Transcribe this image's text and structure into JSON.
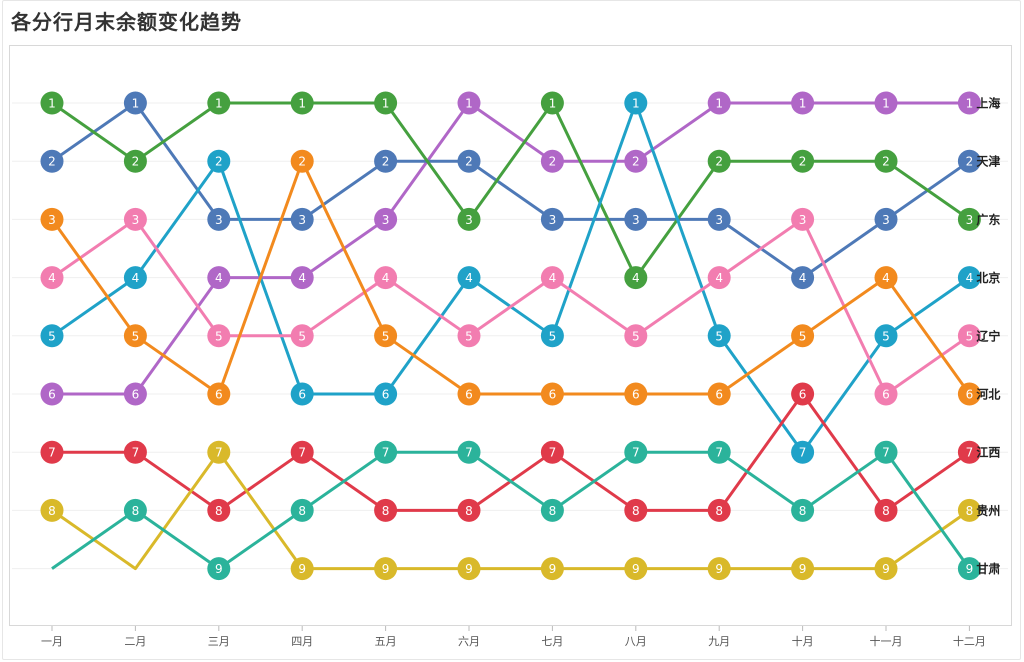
{
  "title": "各分行月末余额变化趋势",
  "chart_data": {
    "type": "line",
    "chart_subtype": "bump",
    "title": "各分行月末余额变化趋势",
    "xlabel": "",
    "ylabel": "",
    "y_axis": "rank",
    "y_reversed": true,
    "ylim": [
      1,
      9
    ],
    "grid": true,
    "categories": [
      "一月",
      "二月",
      "三月",
      "四月",
      "五月",
      "六月",
      "七月",
      "八月",
      "九月",
      "十月",
      "十一月",
      "十二月"
    ],
    "series": [
      {
        "name": "上海",
        "color": "#b067c7",
        "values": [
          6,
          6,
          4,
          4,
          3,
          1,
          2,
          2,
          1,
          1,
          1,
          1
        ]
      },
      {
        "name": "天津",
        "color": "#4e79b7",
        "values": [
          2,
          1,
          3,
          3,
          2,
          2,
          3,
          3,
          3,
          4,
          3,
          2
        ]
      },
      {
        "name": "广东",
        "color": "#45a03f",
        "values": [
          1,
          2,
          1,
          1,
          1,
          3,
          1,
          4,
          2,
          2,
          2,
          3
        ]
      },
      {
        "name": "北京",
        "color": "#1fa2c8",
        "values": [
          5,
          4,
          2,
          6,
          6,
          4,
          5,
          1,
          5,
          7,
          5,
          4
        ]
      },
      {
        "name": "辽宁",
        "color": "#f27db0",
        "values": [
          4,
          3,
          5,
          5,
          4,
          5,
          4,
          5,
          4,
          3,
          6,
          5
        ]
      },
      {
        "name": "河北",
        "color": "#f28a1e",
        "values": [
          3,
          5,
          6,
          2,
          5,
          6,
          6,
          6,
          6,
          5,
          4,
          6
        ]
      },
      {
        "name": "江西",
        "color": "#e03a4a",
        "values": [
          7,
          7,
          8,
          7,
          8,
          8,
          7,
          8,
          8,
          6,
          8,
          7
        ]
      },
      {
        "name": "贵州",
        "color": "#d9b92a",
        "values": [
          8,
          9,
          7,
          9,
          9,
          9,
          9,
          9,
          9,
          9,
          9,
          8
        ]
      },
      {
        "name": "甘肃",
        "color": "#2bb39b",
        "values": [
          9,
          8,
          9,
          8,
          7,
          7,
          8,
          7,
          7,
          8,
          7,
          9
        ]
      }
    ]
  }
}
